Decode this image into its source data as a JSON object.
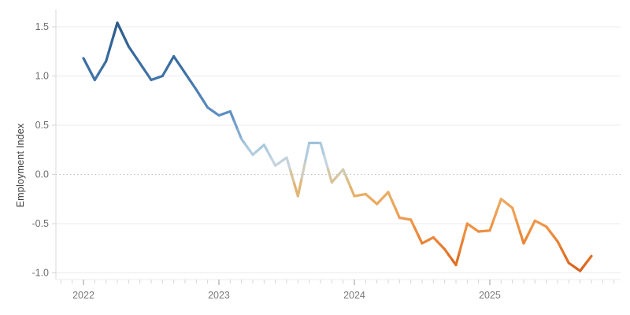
{
  "chart_data": {
    "type": "line",
    "title": "",
    "xlabel": "",
    "ylabel": "Employment Index",
    "x": [
      "2022-01",
      "2022-02",
      "2022-03",
      "2022-04",
      "2022-05",
      "2022-06",
      "2022-07",
      "2022-08",
      "2022-09",
      "2022-10",
      "2022-11",
      "2022-12",
      "2023-01",
      "2023-02",
      "2023-03",
      "2023-04",
      "2023-05",
      "2023-06",
      "2023-07",
      "2023-08",
      "2023-09",
      "2023-10",
      "2023-11",
      "2023-12",
      "2024-01",
      "2024-02",
      "2024-03",
      "2024-04",
      "2024-05",
      "2024-06",
      "2024-07",
      "2024-08",
      "2024-09",
      "2024-10",
      "2024-11",
      "2024-12",
      "2025-01",
      "2025-02",
      "2025-03",
      "2025-04",
      "2025-05",
      "2025-06",
      "2025-07",
      "2025-08",
      "2025-09",
      "2025-10"
    ],
    "values": [
      1.18,
      0.96,
      1.15,
      1.54,
      1.3,
      1.13,
      0.96,
      1.0,
      1.2,
      1.03,
      0.86,
      0.68,
      0.6,
      0.64,
      0.36,
      0.2,
      0.3,
      0.09,
      0.17,
      -0.22,
      0.32,
      0.32,
      -0.08,
      0.05,
      -0.22,
      -0.2,
      -0.3,
      -0.18,
      -0.44,
      -0.46,
      -0.7,
      -0.64,
      -0.76,
      -0.92,
      -0.5,
      -0.58,
      -0.57,
      -0.25,
      -0.34,
      -0.7,
      -0.47,
      -0.53,
      -0.68,
      -0.9,
      -0.98,
      -0.83
    ],
    "y_ticks": [
      1.5,
      1.0,
      0.5,
      0.0,
      -0.5,
      -1.0
    ],
    "y_tick_labels": [
      "1.5",
      "1.0",
      "0.5",
      "0.0",
      "-0.5",
      "-1.0"
    ],
    "x_tick_labels": [
      "2022",
      "2023",
      "2024",
      "2025"
    ],
    "ylim": [
      -1.12,
      1.68
    ],
    "grid": "horizontal",
    "zero_line_style": "dotted",
    "legend": "none",
    "colors": {
      "background": "#ffffff",
      "gridline": "#ebebeb",
      "zero_line": "#c2c2c2",
      "axis_line": "#d9d9d9",
      "minor_tick": "#d4d4d4",
      "year_tick": "#9a9a9a",
      "tick_text": "#6d6d6d",
      "axis_title_text": "#3e3e3e",
      "line_high": "#2c5c88",
      "line_low": "#d85e1d"
    },
    "line_colormap_by_value": [
      {
        "v": 1.55,
        "c": "#2c5c88"
      },
      {
        "v": 1.25,
        "c": "#36689b"
      },
      {
        "v": 1.0,
        "c": "#4173a8"
      },
      {
        "v": 0.8,
        "c": "#4f82b6"
      },
      {
        "v": 0.6,
        "c": "#5f90c3"
      },
      {
        "v": 0.42,
        "c": "#83aad0"
      },
      {
        "v": 0.3,
        "c": "#a6c7dd"
      },
      {
        "v": 0.12,
        "c": "#c4d5e1"
      },
      {
        "v": 0.02,
        "c": "#d3cab1"
      },
      {
        "v": -0.08,
        "c": "#ddbd85"
      },
      {
        "v": -0.2,
        "c": "#e8ae66"
      },
      {
        "v": -0.4,
        "c": "#f0a055"
      },
      {
        "v": -0.6,
        "c": "#ed8c3e"
      },
      {
        "v": -0.8,
        "c": "#e4772b"
      },
      {
        "v": -1.0,
        "c": "#d85e1d"
      }
    ]
  }
}
